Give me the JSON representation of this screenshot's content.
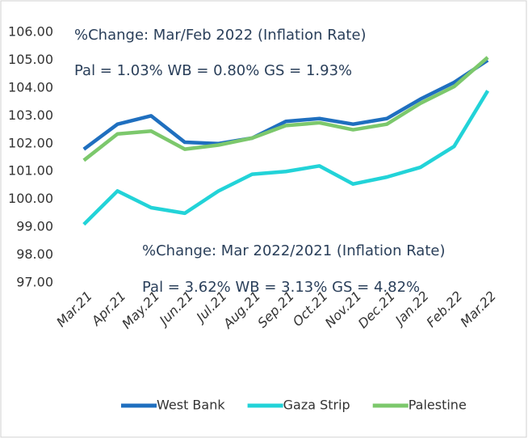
{
  "chart_data": {
    "type": "line",
    "annotations": [
      "%Change: Mar/Feb 2022 (Inflation Rate)",
      "Pal = 1.03%   WB = 0.80%    GS = 1.93%",
      "%Change: Mar  2022/2021 (Inflation Rate)",
      "Pal = 3.62%   WB = 3.13%    GS = 4.82%"
    ],
    "categories": [
      "Mar.21",
      "Apr.21",
      "May.21",
      "Jun.21",
      "Jul.21",
      "Aug.21",
      "Sep.21",
      "Oct.21",
      "Nov.21",
      "Dec.21",
      "Jan.22",
      "Feb.22",
      "Mar.22"
    ],
    "series": [
      {
        "name": "West Bank",
        "color": "#1f6fbf",
        "values": [
          101.8,
          102.7,
          103.0,
          102.05,
          102.0,
          102.2,
          102.8,
          102.9,
          102.7,
          102.9,
          103.6,
          104.2,
          105.0
        ]
      },
      {
        "name": "Gaza Strip",
        "color": "#22d3d8",
        "values": [
          99.1,
          100.3,
          99.7,
          99.5,
          100.3,
          100.9,
          101.0,
          101.2,
          100.55,
          100.8,
          101.15,
          101.9,
          103.9
        ]
      },
      {
        "name": "Palestine",
        "color": "#7cc86c",
        "values": [
          101.4,
          102.35,
          102.45,
          101.8,
          101.95,
          102.2,
          102.65,
          102.75,
          102.5,
          102.7,
          103.45,
          104.05,
          105.1
        ]
      }
    ],
    "ylim": [
      97,
      106
    ],
    "yticks": [
      {
        "value": 97,
        "label": "97.00"
      },
      {
        "value": 98,
        "label": "98.00"
      },
      {
        "value": 99,
        "label": "99.00"
      },
      {
        "value": 100,
        "label": "100.00"
      },
      {
        "value": 101,
        "label": "101.00"
      },
      {
        "value": 102,
        "label": "102.00"
      },
      {
        "value": 103,
        "label": "103.00"
      },
      {
        "value": 104,
        "label": "104.00"
      },
      {
        "value": 105,
        "label": "105.00"
      },
      {
        "value": 106,
        "label": "106.00"
      }
    ],
    "grid": false,
    "legend": "bottom"
  }
}
